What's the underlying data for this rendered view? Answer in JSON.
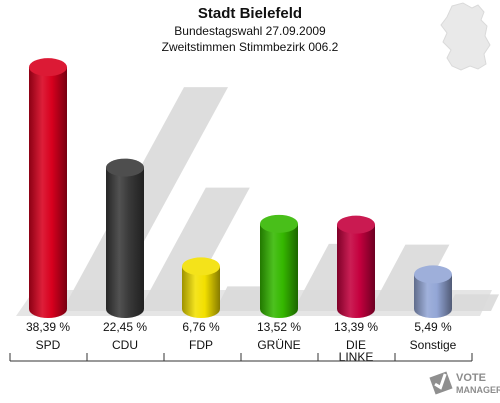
{
  "header": {
    "title": "Stadt Bielefeld",
    "subtitle1": "Bundestagswahl 27.09.2009",
    "subtitle2": "Zweitstimmen Stimmbezirk 006.2"
  },
  "logo": {
    "line1": "VOTE",
    "line2": "MANAGER"
  },
  "chart_data": {
    "type": "bar",
    "title": "Stadt Bielefeld",
    "subtitle": "Bundestagswahl 27.09.2009 – Zweitstimmen Stimmbezirk 006.2",
    "categories": [
      "SPD",
      "CDU",
      "FDP",
      "GRÜNE",
      "DIE LINKE",
      "Sonstige"
    ],
    "values": [
      38.39,
      22.45,
      6.76,
      13.52,
      13.39,
      5.49
    ],
    "value_labels": [
      "38,39 %",
      "22,45 %",
      "6,76 %",
      "13,52 %",
      "13,39 %",
      "5,49 %"
    ],
    "colors": [
      "#d8001e",
      "#3a3a3a",
      "#f3e000",
      "#35b800",
      "#c4003e",
      "#93a6d6"
    ],
    "ylim": [
      0,
      40
    ],
    "grid": false,
    "legend": "none"
  }
}
